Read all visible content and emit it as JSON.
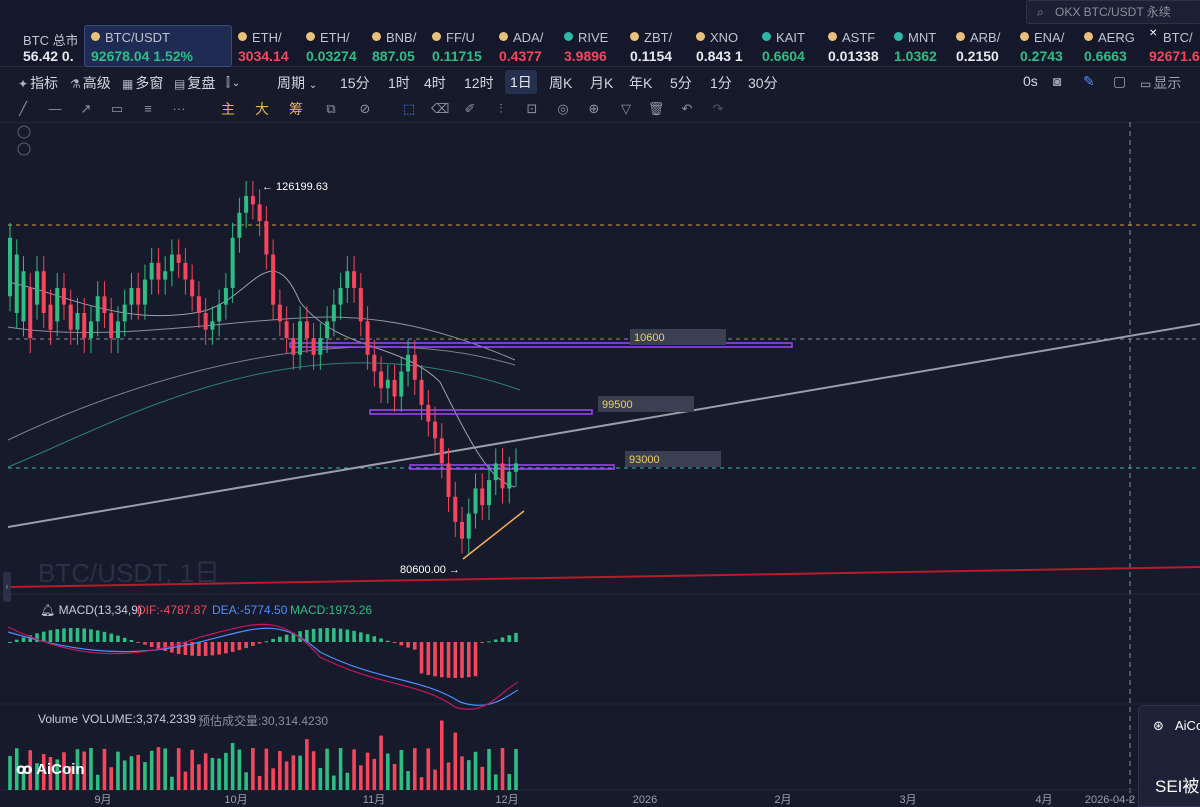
{
  "header": {
    "search_placeholder": "OKX BTC/USDT 永续",
    "tickers": [
      {
        "name": "BTC 总市",
        "price": "56.42 0.",
        "color": "wh",
        "icon": "none"
      },
      {
        "name": "BTC/USDT",
        "price": "92678.04 1.52%",
        "color": "up",
        "icon": "btc-coin-icon",
        "active": true
      },
      {
        "name": "ETH/",
        "price": "3034.14",
        "color": "dn",
        "icon": "eth-coin-icon"
      },
      {
        "name": "ETH/",
        "price": "0.03274",
        "color": "up",
        "icon": "eth-coin-icon"
      },
      {
        "name": "BNB/",
        "price": "887.05",
        "color": "up",
        "icon": "bnb-coin-icon"
      },
      {
        "name": "FF/U",
        "price": "0.11715",
        "color": "up",
        "icon": "ff-coin-icon"
      },
      {
        "name": "ADA/",
        "price": "0.4377",
        "color": "dn",
        "icon": "ada-coin-icon"
      },
      {
        "name": "RIVE",
        "price": "3.9896",
        "color": "dn",
        "icon": "rive-coin-icon"
      },
      {
        "name": "ZBT/",
        "price": "0.1154",
        "color": "wh",
        "icon": "zbt-coin-icon"
      },
      {
        "name": "XNO",
        "price": "0.843 1",
        "color": "wh",
        "icon": "xno-coin-icon"
      },
      {
        "name": "KAIT",
        "price": "0.6604",
        "color": "up",
        "icon": "kait-coin-icon"
      },
      {
        "name": "ASTF",
        "price": "0.01338",
        "color": "wh",
        "icon": "aster-coin-icon"
      },
      {
        "name": "MNT",
        "price": "1.0362",
        "color": "up",
        "icon": "mnt-coin-icon"
      },
      {
        "name": "ARB/",
        "price": "0.2150",
        "color": "wh",
        "icon": "arb-coin-icon"
      },
      {
        "name": "ENA/",
        "price": "0.2743",
        "color": "up",
        "icon": "ena-coin-icon"
      },
      {
        "name": "AERG",
        "price": "0.6663",
        "color": "up",
        "icon": "aero-coin-icon"
      },
      {
        "name": "BTC/",
        "price": "92671.6",
        "color": "dn",
        "icon": "close-x-icon"
      }
    ]
  },
  "toolbar": {
    "items": [
      "指标",
      "高级",
      "多窗",
      "复盘"
    ],
    "period_label": "周期",
    "intervals": [
      "15分",
      "1时",
      "4时",
      "12时",
      "1日",
      "周K",
      "月K",
      "年K",
      "5分",
      "1分",
      "30分"
    ],
    "selected_interval": "1日",
    "right_status": "0s",
    "display_label": "显示"
  },
  "draw_tools": {
    "main_label": "主",
    "big_label": "大",
    "chip_label": "筹"
  },
  "chart": {
    "pair_watermark": "BTC/USDT, 1日",
    "high_label": "126199.63",
    "low_label": "80600.00",
    "levels": [
      "10600",
      "99500",
      "93000"
    ],
    "x_axis_labels": [
      "9月",
      "10月",
      "11月",
      "12月",
      "2026",
      "2月",
      "3月",
      "4月",
      "2026-04-2"
    ],
    "macd": {
      "title": "MACD(13,34,9)",
      "dif": "DIF:-4787.87",
      "dea": "DEA:-5774.50",
      "macd": "MACD:1973.26"
    },
    "volume": {
      "title": "Volume",
      "volume": "VOLUME:3,374.2339",
      "estimate": "预估成交量:30,314.4230"
    },
    "colors": {
      "up": "#2ebd85",
      "down": "#f6465d",
      "level_box": "#a044ff",
      "support": "#f5b25a"
    }
  },
  "popup": {
    "title": "AiCo",
    "body": "SEI被"
  },
  "brand": {
    "logo": "AiCoin"
  }
}
